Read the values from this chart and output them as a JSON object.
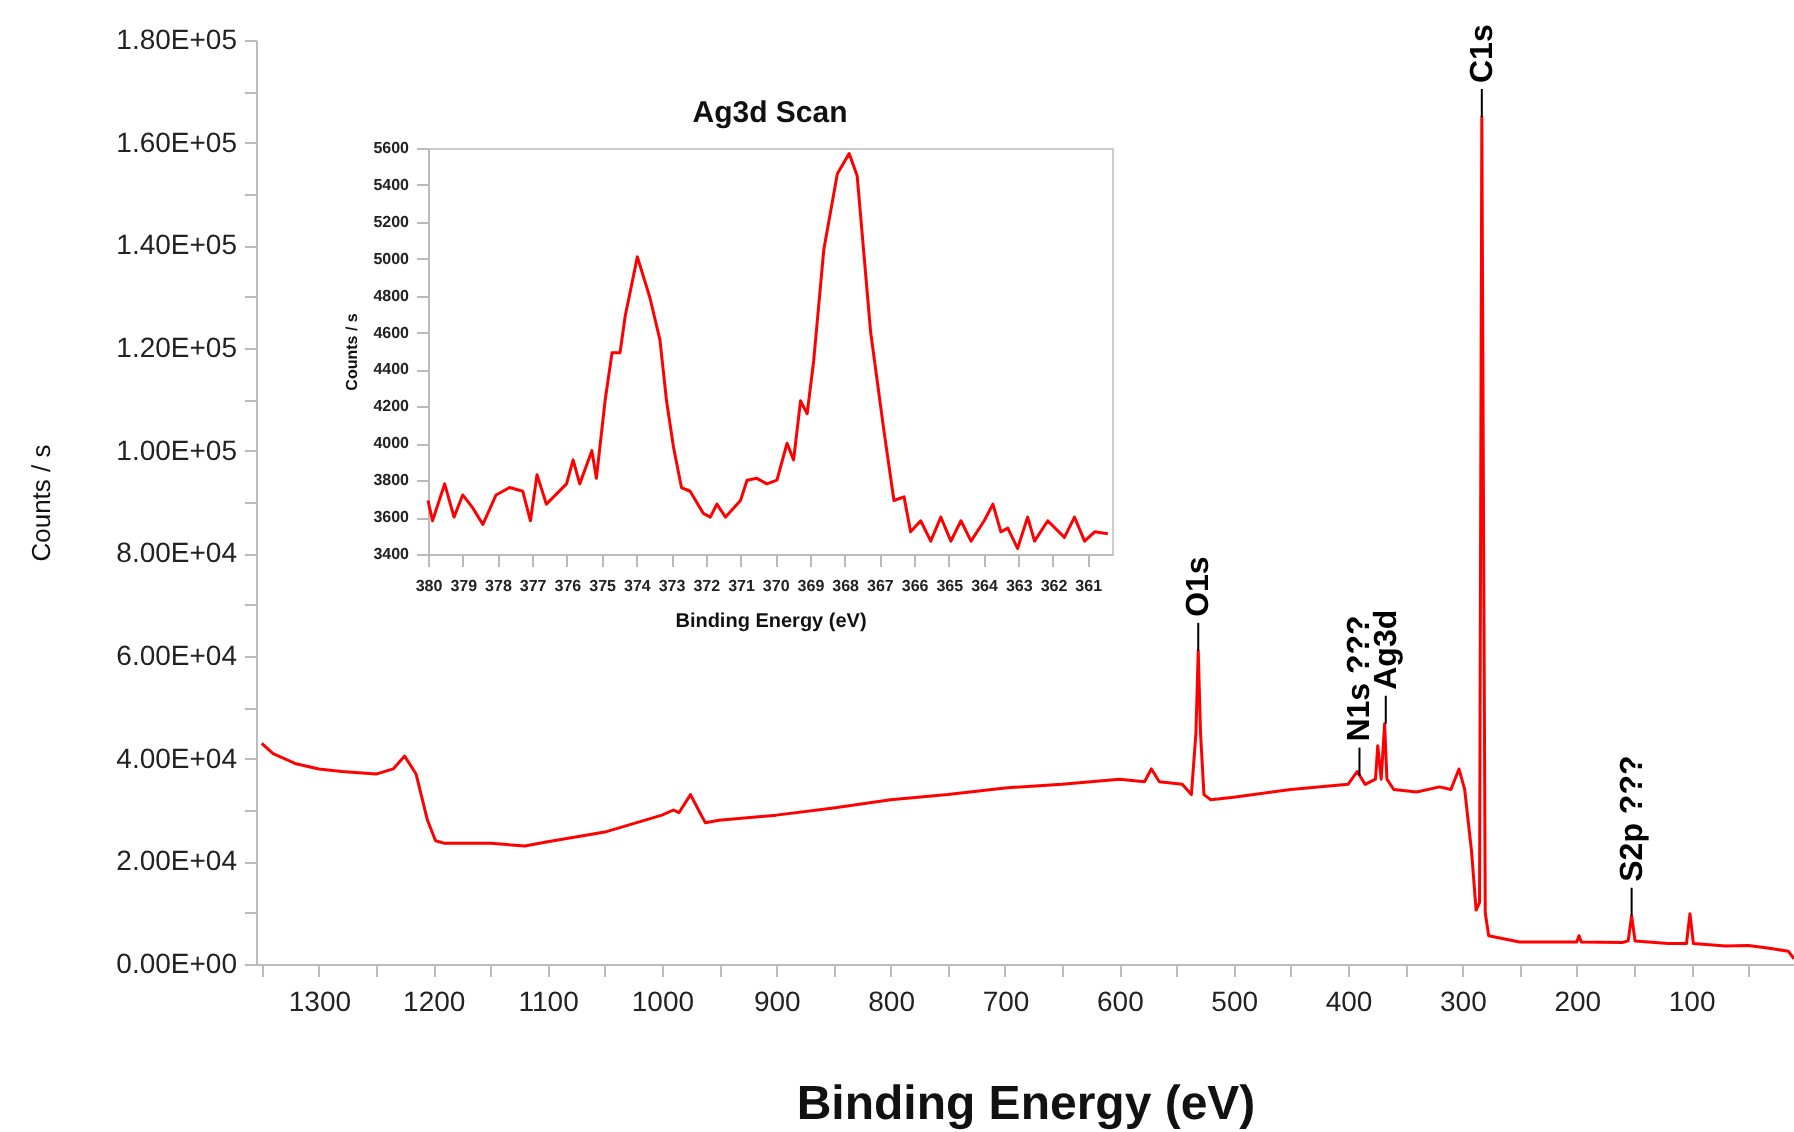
{
  "chart_data": [
    {
      "type": "line",
      "xlabel": "Binding Energy (eV)",
      "ylabel": "Counts / s",
      "color": "#ff0000",
      "x": [
        1350,
        1340,
        1320,
        1300,
        1280,
        1250,
        1235,
        1225,
        1215,
        1205,
        1198,
        1190,
        1150,
        1120,
        1100,
        1050,
        1000,
        990,
        985,
        975,
        968,
        962,
        950,
        900,
        850,
        800,
        750,
        700,
        650,
        600,
        578,
        572,
        565,
        545,
        537,
        533,
        531,
        529,
        526,
        520,
        500,
        450,
        400,
        392,
        385,
        376,
        374,
        371,
        368,
        366,
        360,
        340,
        320,
        310,
        303,
        298,
        292,
        288,
        285,
        283,
        280,
        277,
        250,
        200,
        198,
        196,
        160,
        155,
        152,
        149,
        120,
        104,
        101,
        98,
        70,
        50,
        30,
        15,
        10
      ],
      "values": [
        43000,
        41000,
        39000,
        38000,
        37500,
        37000,
        38000,
        40500,
        37000,
        28000,
        24000,
        23500,
        23500,
        23000,
        23800,
        25700,
        29000,
        30000,
        29500,
        33000,
        30000,
        27500,
        28000,
        29000,
        30400,
        32000,
        33000,
        34300,
        35000,
        36000,
        35500,
        38000,
        35500,
        35000,
        33000,
        45000,
        61000,
        45000,
        33000,
        32000,
        32500,
        34000,
        35000,
        37500,
        35000,
        36000,
        42500,
        36000,
        46800,
        36000,
        34000,
        33500,
        34500,
        34000,
        38000,
        34000,
        22000,
        10500,
        12000,
        165000,
        10000,
        5500,
        4300,
        4300,
        5500,
        4300,
        4200,
        4500,
        9400,
        4500,
        4000,
        4000,
        9800,
        4000,
        3500,
        3600,
        3000,
        2500,
        1000
      ],
      "xlim": [
        1355,
        10
      ],
      "ylim": [
        0,
        180000
      ],
      "xticks": [
        {
          "value": 1350,
          "label": null
        },
        1300,
        {
          "value": 1250,
          "label": null
        },
        1200,
        {
          "value": 1150,
          "label": null
        },
        1100,
        {
          "value": 1050,
          "label": null
        },
        1000,
        {
          "value": 950,
          "label": null
        },
        900,
        {
          "value": 850,
          "label": null
        },
        800,
        {
          "value": 750,
          "label": null
        },
        700,
        {
          "value": 650,
          "label": null
        },
        600,
        {
          "value": 550,
          "label": null
        },
        500,
        {
          "value": 450,
          "label": null
        },
        400,
        {
          "value": 350,
          "label": null
        },
        300,
        {
          "value": 250,
          "label": null
        },
        200,
        {
          "value": 150,
          "label": null
        },
        100,
        {
          "value": 50,
          "label": null
        }
      ],
      "yticks": [
        {
          "value": 0,
          "label": "0.00E+00"
        },
        {
          "value": 10000,
          "label": null
        },
        {
          "value": 20000,
          "label": "2.00E+04"
        },
        {
          "value": 30000,
          "label": null
        },
        {
          "value": 40000,
          "label": "4.00E+04"
        },
        {
          "value": 50000,
          "label": null
        },
        {
          "value": 60000,
          "label": "6.00E+04"
        },
        {
          "value": 70000,
          "label": null
        },
        {
          "value": 80000,
          "label": "8.00E+04"
        },
        {
          "value": 90000,
          "label": null
        },
        {
          "value": 100000,
          "label": "1.00E+05"
        },
        {
          "value": 110000,
          "label": null
        },
        {
          "value": 120000,
          "label": "1.20E+05"
        },
        {
          "value": 130000,
          "label": null
        },
        {
          "value": 140000,
          "label": "1.40E+05"
        },
        {
          "value": 150000,
          "label": null
        },
        {
          "value": 160000,
          "label": "1.60E+05"
        },
        {
          "value": 170000,
          "label": null
        },
        {
          "value": 180000,
          "label": "1.80E+05"
        }
      ],
      "annotations": [
        {
          "text": "O1s",
          "x": 531,
          "y": 61000
        },
        {
          "text": "N1s ???",
          "x": 390,
          "y": 36700
        },
        {
          "text": "Ag3d",
          "x": 367,
          "y": 46800
        },
        {
          "text": "C1s",
          "x": 283,
          "y": 165000
        },
        {
          "text": "S2p ???",
          "x": 152,
          "y": 9400
        }
      ]
    },
    {
      "type": "line",
      "title": "Ag3d Scan",
      "xlabel": "Binding Energy (eV)",
      "ylabel": "Counts / s",
      "color": "#ff0000",
      "x": [
        380,
        379.87,
        379.52,
        379.25,
        379.0,
        378.71,
        378.42,
        378.04,
        377.65,
        377.27,
        377.05,
        376.86,
        376.59,
        376.01,
        375.82,
        375.63,
        375.28,
        375.15,
        374.9,
        374.7,
        374.47,
        374.32,
        373.97,
        373.61,
        373.32,
        373.13,
        372.93,
        372.7,
        372.45,
        372.07,
        371.87,
        371.68,
        371.43,
        371.0,
        370.81,
        370.53,
        370.24,
        369.95,
        369.66,
        369.47,
        369.27,
        369.08,
        368.89,
        368.6,
        368.21,
        367.87,
        367.64,
        367.25,
        366.87,
        366.58,
        366.29,
        366.1,
        365.81,
        365.52,
        365.23,
        364.94,
        364.65,
        364.36,
        363.98,
        363.73,
        363.5,
        363.3,
        363.02,
        362.73,
        362.53,
        362.15,
        361.67,
        361.38,
        361.09,
        360.8,
        360.42
      ],
      "values": [
        3690,
        3580,
        3780,
        3600,
        3720,
        3650,
        3560,
        3720,
        3760,
        3740,
        3580,
        3830,
        3670,
        3780,
        3910,
        3780,
        3960,
        3810,
        4230,
        4490,
        4490,
        4690,
        5010,
        4790,
        4560,
        4230,
        3980,
        3760,
        3740,
        3620,
        3600,
        3670,
        3600,
        3690,
        3800,
        3810,
        3780,
        3800,
        4000,
        3910,
        4230,
        4160,
        4450,
        5050,
        5460,
        5570,
        5450,
        4600,
        4070,
        3690,
        3710,
        3520,
        3580,
        3470,
        3600,
        3470,
        3580,
        3470,
        3580,
        3670,
        3520,
        3540,
        3430,
        3600,
        3470,
        3580,
        3490,
        3600,
        3470,
        3520,
        3510
      ],
      "xlim": [
        380,
        360.3
      ],
      "ylim": [
        3400,
        5600
      ],
      "xticks": [
        380,
        379,
        378,
        377,
        376,
        375,
        374,
        373,
        372,
        371,
        370,
        369,
        368,
        367,
        366,
        365,
        364,
        363,
        362,
        361
      ],
      "yticks": [
        3400,
        3600,
        3800,
        4000,
        4200,
        4400,
        4600,
        4800,
        5000,
        5200,
        5400,
        5600
      ]
    }
  ]
}
